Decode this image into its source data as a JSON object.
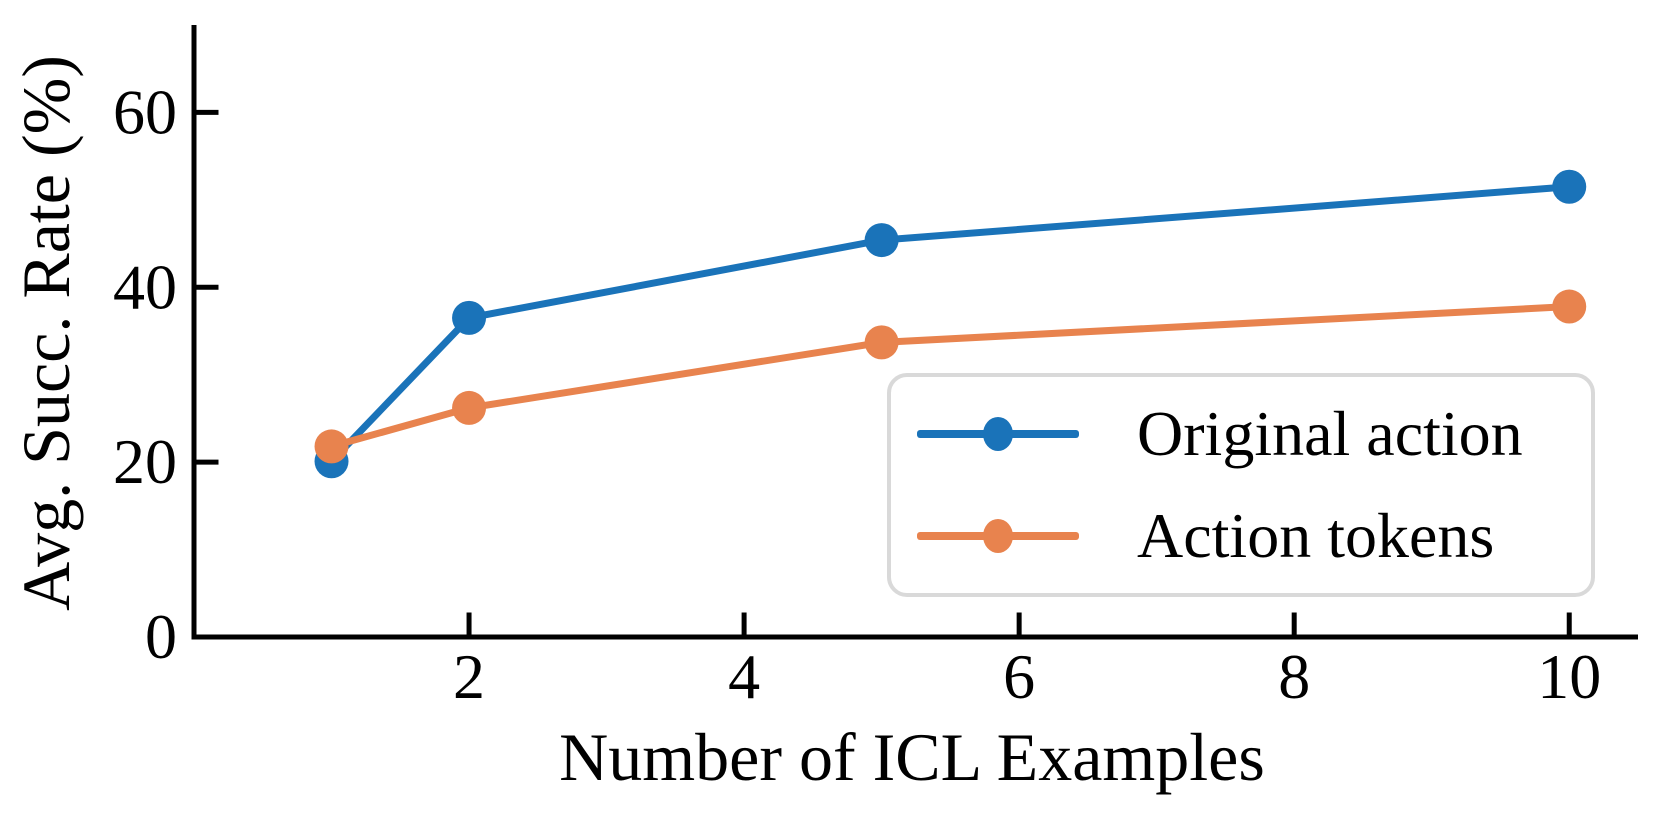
{
  "figure": {
    "ylabel": "Avg. Succ. Rate (%)",
    "xlabel": "Number of ICL Examples"
  },
  "legend": {
    "items": [
      {
        "label": "Original action",
        "color": "#1a73b9"
      },
      {
        "label": "Action tokens",
        "color": "#e8834e"
      }
    ]
  },
  "chart_data": {
    "type": "line",
    "title": "",
    "xlabel": "Number of ICL Examples",
    "ylabel": "Avg. Succ. Rate (%)",
    "x": [
      1,
      2,
      5,
      10
    ],
    "series": [
      {
        "name": "Original action",
        "color": "#1a73b9",
        "values": [
          20.1,
          36.5,
          45.4,
          51.5
        ]
      },
      {
        "name": "Action tokens",
        "color": "#e8834e",
        "values": [
          21.8,
          26.2,
          33.7,
          37.8
        ]
      }
    ],
    "xticks": [
      2,
      4,
      6,
      8,
      10
    ],
    "yticks": [
      0,
      20,
      40,
      60
    ],
    "xlim": [
      0,
      10.5
    ],
    "ylim": [
      0,
      70
    ],
    "grid": false,
    "marker": "circle",
    "legend_position": "lower right inside"
  }
}
